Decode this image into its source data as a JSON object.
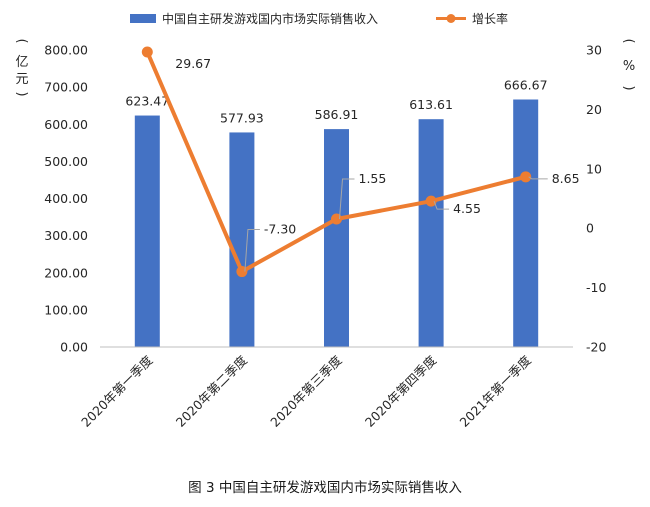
{
  "chart_data": {
    "type": "bar",
    "title": "",
    "categories": [
      "2020年第一季度",
      "2020年第二季度",
      "2020年第三季度",
      "2020年第四季度",
      "2021年第一季度"
    ],
    "series": [
      {
        "name": "中国自主研发游戏国内市场实际销售收入",
        "type": "bar",
        "axis": "left",
        "color": "#4472C4",
        "values": [
          623.47,
          577.93,
          586.91,
          613.61,
          666.67
        ],
        "labels": [
          "623.47",
          "577.93",
          "586.91",
          "613.61",
          "666.67"
        ]
      },
      {
        "name": "增长率",
        "type": "line",
        "axis": "right",
        "color": "#ED7D31",
        "values": [
          29.67,
          -7.3,
          1.55,
          4.55,
          8.65
        ],
        "labels": [
          "29.67",
          "-7.30",
          "1.55",
          "4.55",
          "8.65"
        ]
      }
    ],
    "y_left": {
      "label": "亿元",
      "ylim": [
        0,
        800
      ],
      "ticks": [
        "0.00",
        "100.00",
        "200.00",
        "300.00",
        "400.00",
        "500.00",
        "600.00",
        "700.00",
        "800.00"
      ]
    },
    "y_right": {
      "label": "%",
      "ylim": [
        -20,
        30
      ],
      "ticks": [
        "-20",
        "-10",
        "0",
        "10",
        "20",
        "30"
      ]
    },
    "legend_position": "top",
    "grid": false
  },
  "caption": "图 3  中国自主研发游戏国内市场实际销售收入"
}
